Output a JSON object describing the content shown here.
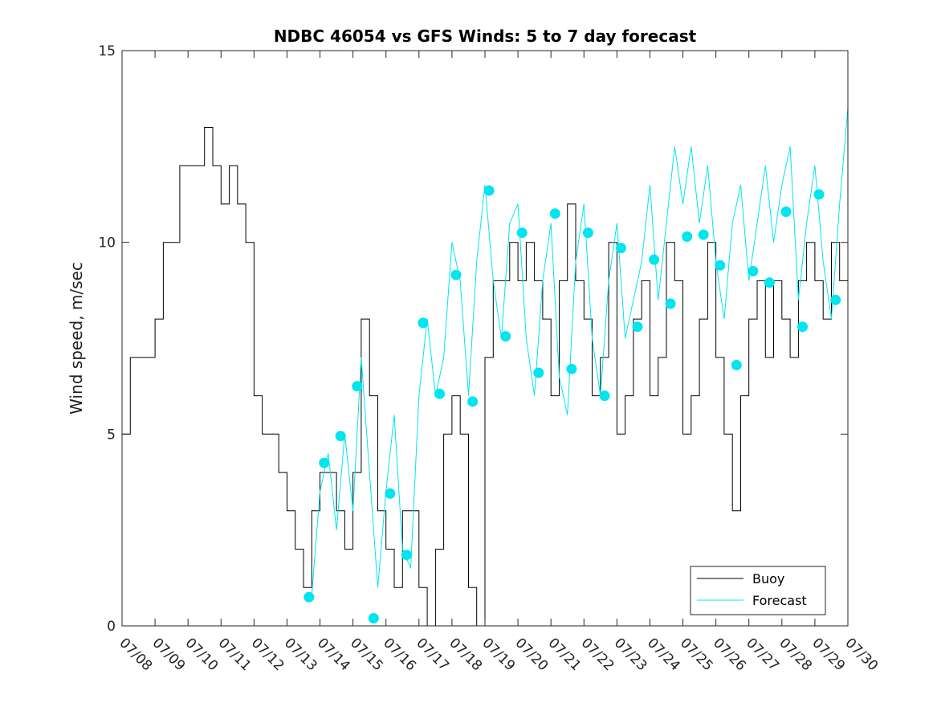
{
  "chart_data": {
    "type": "line",
    "title": "NDBC 46054 vs GFS Winds: 5 to 7 day forecast",
    "xlabel": "",
    "ylabel": "Wind speed, m/sec",
    "ylim": [
      0,
      15
    ],
    "xlim": [
      "07/08",
      "07/30"
    ],
    "x_tick_labels": [
      "07/08",
      "07/09",
      "07/10",
      "07/11",
      "07/12",
      "07/13",
      "07/14",
      "07/15",
      "07/16",
      "07/17",
      "07/18",
      "07/19",
      "07/20",
      "07/21",
      "07/22",
      "07/23",
      "07/24",
      "07/25",
      "07/26",
      "07/27",
      "07/28",
      "07/29",
      "07/30"
    ],
    "y_ticks": [
      0,
      5,
      10,
      15
    ],
    "grid": false,
    "legend_position": "bottom-right",
    "colors": {
      "buoy": "#000000",
      "forecast": "#00e5ee"
    },
    "series": [
      {
        "name": "Buoy",
        "x": [
          "07/08 00:00",
          "07/08 06:00",
          "07/08 12:00",
          "07/08 18:00",
          "07/09 00:00",
          "07/09 06:00",
          "07/09 12:00",
          "07/09 18:00",
          "07/10 00:00",
          "07/10 06:00",
          "07/10 12:00",
          "07/10 18:00",
          "07/11 00:00",
          "07/11 06:00",
          "07/11 12:00",
          "07/11 18:00",
          "07/12 00:00",
          "07/12 06:00",
          "07/12 12:00",
          "07/12 18:00",
          "07/13 00:00",
          "07/13 06:00",
          "07/13 12:00",
          "07/13 18:00",
          "07/14 00:00",
          "07/14 06:00",
          "07/14 12:00",
          "07/14 18:00",
          "07/15 00:00",
          "07/15 06:00",
          "07/15 12:00",
          "07/15 18:00",
          "07/16 00:00",
          "07/16 06:00",
          "07/16 12:00",
          "07/16 18:00",
          "07/17 00:00",
          "07/17 06:00",
          "07/17 12:00",
          "07/17 18:00",
          "07/18 00:00",
          "07/18 06:00",
          "07/18 12:00",
          "07/18 18:00",
          "07/19 00:00",
          "07/19 06:00",
          "07/19 12:00",
          "07/19 18:00",
          "07/20 00:00",
          "07/20 06:00",
          "07/20 12:00",
          "07/20 18:00",
          "07/21 00:00",
          "07/21 06:00",
          "07/21 12:00",
          "07/21 18:00",
          "07/22 00:00",
          "07/22 06:00",
          "07/22 12:00",
          "07/22 18:00",
          "07/23 00:00",
          "07/23 06:00",
          "07/23 12:00",
          "07/23 18:00",
          "07/24 00:00",
          "07/24 06:00",
          "07/24 12:00",
          "07/24 18:00",
          "07/25 00:00",
          "07/25 06:00",
          "07/25 12:00",
          "07/25 18:00",
          "07/26 00:00",
          "07/26 06:00",
          "07/26 12:00",
          "07/26 18:00",
          "07/27 00:00",
          "07/27 06:00",
          "07/27 12:00",
          "07/27 18:00",
          "07/28 00:00",
          "07/28 06:00",
          "07/28 12:00",
          "07/28 18:00",
          "07/29 00:00",
          "07/29 06:00",
          "07/29 12:00",
          "07/29 18:00",
          "07/30 00:00"
        ],
        "y": [
          5,
          7,
          7,
          7,
          8,
          10,
          10,
          12,
          12,
          12,
          13,
          12,
          11,
          12,
          11,
          10,
          6,
          5,
          5,
          4,
          3,
          2,
          1,
          3,
          4,
          4,
          3,
          2,
          4,
          8,
          6,
          3,
          2,
          1,
          3,
          3,
          1,
          0,
          2,
          5,
          6,
          5,
          1,
          0,
          7,
          9,
          9,
          10,
          9,
          10,
          9,
          8,
          6,
          9,
          11,
          9,
          8,
          6,
          7,
          10,
          5,
          6,
          8,
          9,
          6,
          7,
          10,
          9,
          5,
          6,
          8,
          10,
          7,
          5,
          3,
          6,
          8,
          9,
          7,
          9,
          8,
          7,
          9,
          10,
          9,
          8,
          10,
          9,
          11
        ]
      },
      {
        "name": "Forecast",
        "x": [
          "07/13 18:00",
          "07/14 00:00",
          "07/14 06:00",
          "07/14 12:00",
          "07/14 18:00",
          "07/15 00:00",
          "07/15 06:00",
          "07/15 12:00",
          "07/15 18:00",
          "07/16 00:00",
          "07/16 06:00",
          "07/16 12:00",
          "07/16 18:00",
          "07/17 00:00",
          "07/17 06:00",
          "07/17 12:00",
          "07/17 18:00",
          "07/18 00:00",
          "07/18 06:00",
          "07/18 12:00",
          "07/18 18:00",
          "07/19 00:00",
          "07/19 06:00",
          "07/19 12:00",
          "07/19 18:00",
          "07/20 00:00",
          "07/20 06:00",
          "07/20 12:00",
          "07/20 18:00",
          "07/21 00:00",
          "07/21 06:00",
          "07/21 12:00",
          "07/21 18:00",
          "07/22 00:00",
          "07/22 06:00",
          "07/22 12:00",
          "07/22 18:00",
          "07/23 00:00",
          "07/23 06:00",
          "07/23 12:00",
          "07/23 18:00",
          "07/24 00:00",
          "07/24 06:00",
          "07/24 12:00",
          "07/24 18:00",
          "07/25 00:00",
          "07/25 06:00",
          "07/25 12:00",
          "07/25 18:00",
          "07/26 00:00",
          "07/26 06:00",
          "07/26 12:00",
          "07/26 18:00",
          "07/27 00:00",
          "07/27 06:00",
          "07/27 12:00",
          "07/27 18:00",
          "07/28 00:00",
          "07/28 06:00",
          "07/28 12:00",
          "07/28 18:00",
          "07/29 00:00",
          "07/29 06:00",
          "07/29 12:00",
          "07/29 18:00",
          "07/30 00:00"
        ],
        "y": [
          0.8,
          3.5,
          4.5,
          2.5,
          5.0,
          3.0,
          7.0,
          4.0,
          1.0,
          3.5,
          5.5,
          2.0,
          1.5,
          6.0,
          8.0,
          6.0,
          7.0,
          10.0,
          9.0,
          6.0,
          9.5,
          11.5,
          9.0,
          7.5,
          10.5,
          11.0,
          7.5,
          6.0,
          9.0,
          10.5,
          6.5,
          5.5,
          9.5,
          11.0,
          7.5,
          6.0,
          9.0,
          10.5,
          7.5,
          8.5,
          9.5,
          11.5,
          8.5,
          10.5,
          12.5,
          11.0,
          12.5,
          10.5,
          12.0,
          9.5,
          8.0,
          10.5,
          11.5,
          9.0,
          10.5,
          12.0,
          10.0,
          11.5,
          12.5,
          8.5,
          10.5,
          12.0,
          9.5,
          8.0,
          11.0,
          13.5
        ]
      }
    ],
    "forecast_markers": {
      "x": [
        "07/13 16:00",
        "07/14 03:00",
        "07/14 15:00",
        "07/15 03:00",
        "07/15 15:00",
        "07/16 03:00",
        "07/16 15:00",
        "07/17 03:00",
        "07/17 15:00",
        "07/18 03:00",
        "07/18 15:00",
        "07/19 03:00",
        "07/19 15:00",
        "07/20 03:00",
        "07/20 15:00",
        "07/21 03:00",
        "07/21 15:00",
        "07/22 03:00",
        "07/22 15:00",
        "07/23 03:00",
        "07/23 15:00",
        "07/24 03:00",
        "07/24 15:00",
        "07/25 03:00",
        "07/25 15:00",
        "07/26 03:00",
        "07/26 15:00",
        "07/27 03:00",
        "07/27 15:00",
        "07/28 03:00",
        "07/28 15:00",
        "07/29 03:00",
        "07/29 15:00"
      ],
      "y": [
        0.75,
        4.25,
        4.95,
        6.25,
        0.2,
        3.45,
        1.85,
        7.9,
        6.05,
        9.15,
        5.85,
        11.35,
        7.55,
        10.25,
        6.6,
        10.75,
        6.7,
        10.25,
        6.0,
        9.85,
        7.8,
        9.55,
        8.4,
        10.15,
        10.2,
        9.4,
        6.8,
        9.25,
        8.95,
        10.8,
        7.8,
        11.25,
        8.5
      ]
    },
    "legend": [
      {
        "label": "Buoy",
        "color": "#000000"
      },
      {
        "label": "Forecast",
        "color": "#00e5ee"
      }
    ]
  }
}
